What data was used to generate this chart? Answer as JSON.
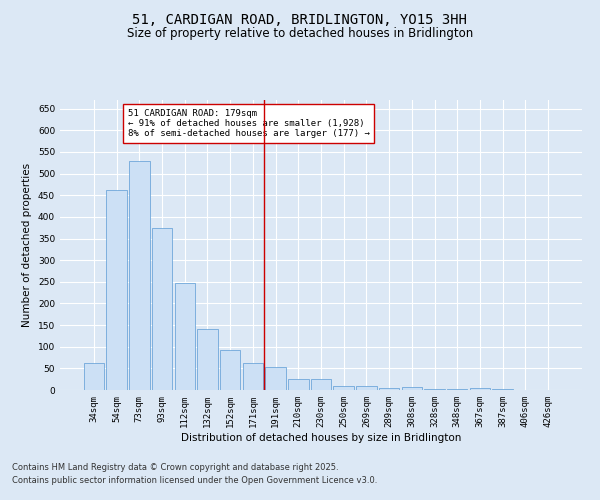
{
  "title": "51, CARDIGAN ROAD, BRIDLINGTON, YO15 3HH",
  "subtitle": "Size of property relative to detached houses in Bridlington",
  "xlabel": "Distribution of detached houses by size in Bridlington",
  "ylabel": "Number of detached properties",
  "categories": [
    "34sqm",
    "54sqm",
    "73sqm",
    "93sqm",
    "112sqm",
    "132sqm",
    "152sqm",
    "171sqm",
    "191sqm",
    "210sqm",
    "230sqm",
    "250sqm",
    "269sqm",
    "289sqm",
    "308sqm",
    "328sqm",
    "348sqm",
    "367sqm",
    "387sqm",
    "406sqm",
    "426sqm"
  ],
  "values": [
    62,
    463,
    528,
    375,
    248,
    141,
    93,
    63,
    53,
    25,
    25,
    10,
    10,
    5,
    8,
    3,
    2,
    5,
    3,
    1,
    1
  ],
  "bar_color": "#cce0f5",
  "bar_edge_color": "#5b9bd5",
  "background_color": "#dce8f5",
  "grid_color": "#ffffff",
  "vline_color": "#cc0000",
  "vline_x": 7.5,
  "annotation_text": "51 CARDIGAN ROAD: 179sqm\n← 91% of detached houses are smaller (1,928)\n8% of semi-detached houses are larger (177) →",
  "annotation_box_color": "#ffffff",
  "annotation_box_edge": "#cc0000",
  "ylim": [
    0,
    670
  ],
  "yticks": [
    0,
    50,
    100,
    150,
    200,
    250,
    300,
    350,
    400,
    450,
    500,
    550,
    600,
    650
  ],
  "footer_line1": "Contains HM Land Registry data © Crown copyright and database right 2025.",
  "footer_line2": "Contains public sector information licensed under the Open Government Licence v3.0.",
  "title_fontsize": 10,
  "subtitle_fontsize": 8.5,
  "annot_fontsize": 6.5,
  "footer_fontsize": 6,
  "axis_label_fontsize": 7.5,
  "tick_fontsize": 6.5
}
